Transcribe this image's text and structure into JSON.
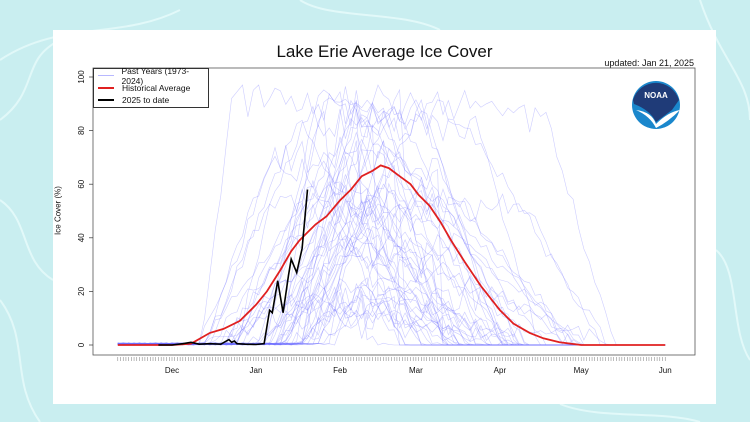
{
  "chart_data": {
    "type": "line",
    "title": "Lake Erie Average Ice Cover",
    "subtitle": "updated: Jan 21, 2025",
    "ylabel": "Ice Cover (%)",
    "xlabel": "",
    "ylim": [
      0,
      100
    ],
    "yticks": [
      0,
      20,
      40,
      60,
      80,
      100
    ],
    "xticks": [
      "Dec",
      "Jan",
      "Feb",
      "Mar",
      "Apr",
      "May",
      "Jun"
    ],
    "xrange": [
      "Nov 11",
      "Jun 1"
    ],
    "legend_placement": "top-left",
    "grid": false,
    "series": [
      {
        "name": "Past Years (1973-2024)",
        "color": "#8080ff",
        "values": []
      },
      {
        "name": "Historical Average",
        "color": "#e02020",
        "dates": [
          "Nov 11",
          "Dec 1",
          "Dec 8",
          "Dec 15",
          "Dec 20",
          "Dec 26",
          "Jan 1",
          "Jan 5",
          "Jan 10",
          "Jan 14",
          "Jan 17",
          "Jan 20",
          "Jan 23",
          "Jan 27",
          "Feb 1",
          "Feb 5",
          "Feb 9",
          "Feb 13",
          "Feb 16",
          "Feb 19",
          "Feb 23",
          "Feb 27",
          "Mar 2",
          "Mar 6",
          "Mar 10",
          "Mar 14",
          "Mar 19",
          "Mar 25",
          "Apr 1",
          "Apr 6",
          "Apr 12",
          "Apr 17",
          "Apr 23",
          "May 1",
          "Jun 1"
        ],
        "values": [
          0,
          0,
          0.5,
          4.5,
          6,
          9,
          15,
          20,
          28,
          35,
          39,
          42,
          45,
          48,
          54,
          58,
          63,
          65,
          67,
          66,
          63,
          60,
          56,
          52,
          46,
          39,
          31,
          22,
          13,
          8,
          4.5,
          2.5,
          1,
          0,
          0
        ]
      },
      {
        "name": "2025 to date",
        "color": "#000000",
        "dates": [
          "Nov 26",
          "Dec 1",
          "Dec 5",
          "Dec 8",
          "Dec 11",
          "Dec 15",
          "Dec 19",
          "Dec 22",
          "Dec 23",
          "Dec 24",
          "Dec 25",
          "Dec 28",
          "Jan 1",
          "Jan 4",
          "Jan 6",
          "Jan 7",
          "Jan 9",
          "Jan 11",
          "Jan 13",
          "Jan 14",
          "Jan 16",
          "Jan 18",
          "Jan 20"
        ],
        "values": [
          0,
          0,
          0.5,
          1,
          0.3,
          0.5,
          0.3,
          2,
          1,
          1.5,
          0.5,
          0.3,
          0.2,
          0.5,
          13,
          12,
          24,
          12,
          26,
          32,
          27,
          36,
          58
        ]
      }
    ]
  },
  "logo": {
    "text": "NOAA",
    "colors": {
      "top": "#1f3b78",
      "bottom": "#1a87cc"
    }
  }
}
